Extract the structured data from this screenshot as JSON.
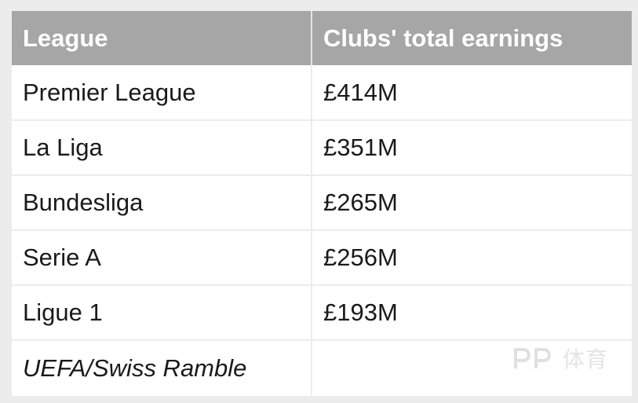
{
  "table": {
    "headers": {
      "league": "League",
      "earnings": "Clubs' total earnings"
    },
    "rows": [
      {
        "league": "Premier League",
        "earnings": "£414M"
      },
      {
        "league": "La Liga",
        "earnings": "£351M"
      },
      {
        "league": "Bundesliga",
        "earnings": "£265M"
      },
      {
        "league": "Serie A",
        "earnings": "£256M"
      },
      {
        "league": "Ligue 1",
        "earnings": "£193M"
      }
    ],
    "source": "UEFA/Swiss Ramble"
  },
  "watermark": {
    "text": "体育",
    "logo_icon": "pp-logo-icon"
  },
  "colors": {
    "header_bg": "#a6a6a6",
    "header_text": "#ffffff",
    "page_bg": "#ececec"
  }
}
